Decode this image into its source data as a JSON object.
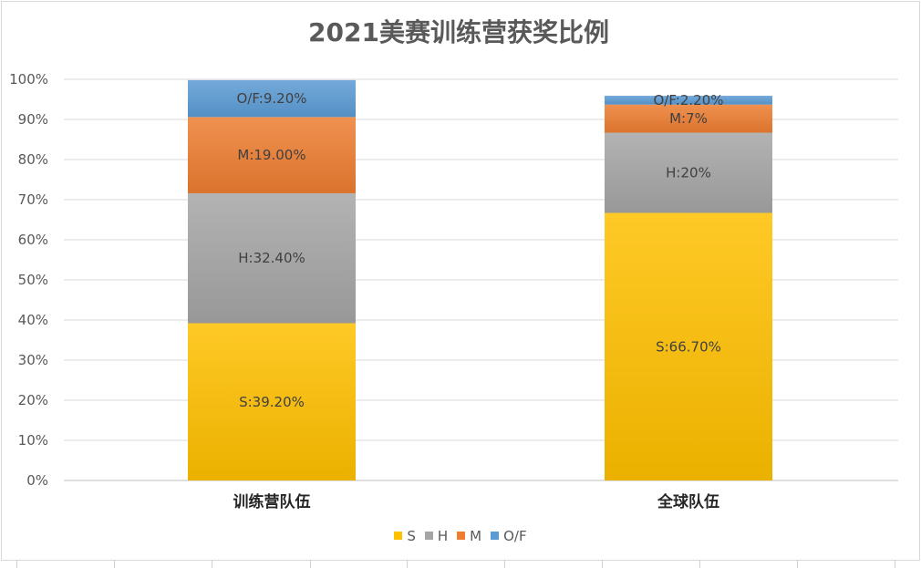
{
  "chart_data": {
    "type": "bar",
    "stacked": true,
    "title": "2021美赛训练营获奖比例",
    "categories": [
      "训练营队伍",
      "全球队伍"
    ],
    "series": [
      {
        "name": "S",
        "values": [
          39.2,
          66.7
        ],
        "labels": [
          "S:39.20%",
          "S:66.70%"
        ],
        "color": "#FFC000"
      },
      {
        "name": "H",
        "values": [
          32.4,
          20
        ],
        "labels": [
          "H:32.40%",
          "H:20%"
        ],
        "color": "#A5A5A5"
      },
      {
        "name": "M",
        "values": [
          19.0,
          7
        ],
        "labels": [
          "M:19.00%",
          "M:7%"
        ],
        "color": "#ED7D31"
      },
      {
        "name": "O/F",
        "values": [
          9.2,
          2.2
        ],
        "labels": [
          "O/F:9.20%",
          "O/F:2.20%"
        ],
        "color": "#5B9BD5"
      }
    ],
    "y_ticks": [
      "0%",
      "10%",
      "20%",
      "30%",
      "40%",
      "50%",
      "60%",
      "70%",
      "80%",
      "90%",
      "100%"
    ],
    "ylim": [
      0,
      100
    ],
    "grid": true,
    "legend_position": "bottom"
  }
}
